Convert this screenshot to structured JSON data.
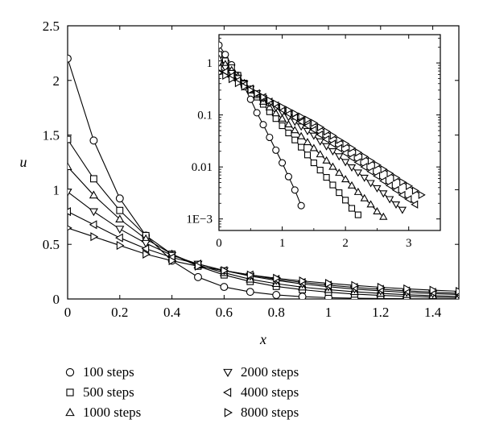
{
  "chart_data": {
    "type": "line",
    "xlabel": "x",
    "ylabel": "u",
    "xlim": [
      0,
      1.5
    ],
    "ylim": [
      0,
      2.5
    ],
    "xticks": [
      "0",
      "0.2",
      "0.4",
      "0.6",
      "0.8",
      "1",
      "1.2",
      "1.4"
    ],
    "yticks": [
      "0",
      "0.5",
      "1",
      "1.5",
      "2",
      "2.5"
    ],
    "grid": false,
    "legend_position": "bottom",
    "series": [
      {
        "name": "100 steps",
        "marker": "circle",
        "x": [
          0,
          0.1,
          0.2,
          0.3,
          0.4,
          0.5,
          0.6,
          0.7,
          0.8,
          0.9,
          1.0,
          1.1,
          1.2,
          1.3,
          1.4,
          1.5
        ],
        "y": [
          2.2,
          1.45,
          0.92,
          0.58,
          0.35,
          0.2,
          0.11,
          0.065,
          0.037,
          0.021,
          0.012,
          0.007,
          0.004,
          0.002,
          0.0012,
          0.0007
        ]
      },
      {
        "name": "500 steps",
        "marker": "square",
        "x": [
          0,
          0.1,
          0.2,
          0.3,
          0.4,
          0.5,
          0.6,
          0.7,
          0.8,
          0.9,
          1.0,
          1.1,
          1.2,
          1.3,
          1.4,
          1.5
        ],
        "y": [
          1.46,
          1.1,
          0.81,
          0.58,
          0.41,
          0.3,
          0.22,
          0.16,
          0.115,
          0.085,
          0.062,
          0.045,
          0.033,
          0.024,
          0.017,
          0.012
        ]
      },
      {
        "name": "1000 steps",
        "marker": "triangle-up",
        "x": [
          0,
          0.1,
          0.2,
          0.3,
          0.4,
          0.5,
          0.6,
          0.7,
          0.8,
          0.9,
          1.0,
          1.1,
          1.2,
          1.3,
          1.4,
          1.5
        ],
        "y": [
          1.21,
          0.95,
          0.73,
          0.55,
          0.41,
          0.31,
          0.24,
          0.18,
          0.14,
          0.108,
          0.085,
          0.066,
          0.051,
          0.039,
          0.03,
          0.023
        ]
      },
      {
        "name": "2000 steps",
        "marker": "triangle-down",
        "x": [
          0,
          0.1,
          0.2,
          0.3,
          0.4,
          0.5,
          0.6,
          0.7,
          0.8,
          0.9,
          1.0,
          1.1,
          1.2,
          1.3,
          1.4,
          1.5
        ],
        "y": [
          0.98,
          0.8,
          0.64,
          0.51,
          0.4,
          0.32,
          0.26,
          0.21,
          0.17,
          0.138,
          0.112,
          0.091,
          0.074,
          0.06,
          0.049,
          0.04
        ]
      },
      {
        "name": "4000 steps",
        "marker": "triangle-left",
        "x": [
          0,
          0.1,
          0.2,
          0.3,
          0.4,
          0.5,
          0.6,
          0.7,
          0.8,
          0.9,
          1.0,
          1.1,
          1.2,
          1.3,
          1.4,
          1.5
        ],
        "y": [
          0.8,
          0.68,
          0.56,
          0.46,
          0.38,
          0.32,
          0.26,
          0.22,
          0.18,
          0.152,
          0.127,
          0.106,
          0.089,
          0.074,
          0.062,
          0.052
        ]
      },
      {
        "name": "8000 steps",
        "marker": "triangle-right",
        "x": [
          0,
          0.1,
          0.2,
          0.3,
          0.4,
          0.5,
          0.6,
          0.7,
          0.8,
          0.9,
          1.0,
          1.1,
          1.2,
          1.3,
          1.4,
          1.5
        ],
        "y": [
          0.65,
          0.57,
          0.49,
          0.41,
          0.35,
          0.3,
          0.26,
          0.22,
          0.19,
          0.165,
          0.143,
          0.124,
          0.107,
          0.093,
          0.081,
          0.07
        ]
      }
    ],
    "inset": {
      "type": "line",
      "yscale": "log",
      "xlim": [
        0,
        3.5
      ],
      "ylim": [
        0.0006,
        3.5
      ],
      "xticks": [
        "0",
        "1",
        "2",
        "3"
      ],
      "yticks": [
        "1E−3",
        "0.01",
        "0.1",
        "1"
      ],
      "series": [
        {
          "name": "100 steps",
          "x": [
            0,
            0.1,
            0.2,
            0.3,
            0.4,
            0.5,
            0.6,
            0.7,
            0.8,
            0.9,
            1.0,
            1.1,
            1.2,
            1.3
          ],
          "y": [
            2.2,
            1.45,
            0.92,
            0.58,
            0.35,
            0.2,
            0.11,
            0.065,
            0.037,
            0.021,
            0.012,
            0.0065,
            0.0036,
            0.0018
          ]
        },
        {
          "name": "500 steps",
          "x": [
            0,
            0.1,
            0.2,
            0.3,
            0.4,
            0.5,
            0.6,
            0.7,
            0.8,
            0.9,
            1.0,
            1.1,
            1.2,
            1.3,
            1.4,
            1.5,
            1.6,
            1.7,
            1.8,
            1.9,
            2.0,
            2.1,
            2.2
          ],
          "y": [
            1.46,
            1.1,
            0.81,
            0.58,
            0.41,
            0.3,
            0.22,
            0.16,
            0.115,
            0.085,
            0.062,
            0.045,
            0.033,
            0.024,
            0.017,
            0.012,
            0.0087,
            0.0063,
            0.0045,
            0.0032,
            0.0023,
            0.0016,
            0.0012
          ]
        },
        {
          "name": "1000 steps",
          "x": [
            0,
            0.1,
            0.2,
            0.3,
            0.4,
            0.5,
            0.6,
            0.7,
            0.8,
            0.9,
            1.0,
            1.1,
            1.2,
            1.3,
            1.4,
            1.5,
            1.6,
            1.7,
            1.8,
            1.9,
            2.0,
            2.1,
            2.2,
            2.3,
            2.4,
            2.5,
            2.6
          ],
          "y": [
            1.21,
            0.95,
            0.73,
            0.55,
            0.41,
            0.31,
            0.24,
            0.18,
            0.14,
            0.108,
            0.085,
            0.066,
            0.051,
            0.039,
            0.03,
            0.023,
            0.0175,
            0.0133,
            0.0101,
            0.0077,
            0.0058,
            0.0044,
            0.0033,
            0.0025,
            0.0019,
            0.0014,
            0.0011
          ]
        },
        {
          "name": "2000 steps",
          "x": [
            0,
            0.1,
            0.2,
            0.3,
            0.4,
            0.5,
            0.6,
            0.7,
            0.8,
            0.9,
            1.0,
            1.1,
            1.2,
            1.3,
            1.4,
            1.5,
            1.6,
            1.7,
            1.8,
            1.9,
            2.0,
            2.1,
            2.2,
            2.3,
            2.4,
            2.5,
            2.6,
            2.7,
            2.8,
            2.9
          ],
          "y": [
            0.98,
            0.8,
            0.64,
            0.51,
            0.4,
            0.32,
            0.26,
            0.21,
            0.17,
            0.138,
            0.112,
            0.091,
            0.074,
            0.06,
            0.049,
            0.04,
            0.031,
            0.025,
            0.02,
            0.016,
            0.0124,
            0.0098,
            0.0078,
            0.0062,
            0.0049,
            0.0039,
            0.0031,
            0.0024,
            0.0019,
            0.0015
          ]
        },
        {
          "name": "4000 steps",
          "x": [
            0,
            0.1,
            0.2,
            0.3,
            0.4,
            0.5,
            0.6,
            0.7,
            0.8,
            0.9,
            1.0,
            1.1,
            1.2,
            1.3,
            1.4,
            1.5,
            1.6,
            1.7,
            1.8,
            1.9,
            2.0,
            2.1,
            2.2,
            2.3,
            2.4,
            2.5,
            2.6,
            2.7,
            2.8,
            2.9,
            3.0,
            3.1
          ],
          "y": [
            0.8,
            0.68,
            0.56,
            0.46,
            0.38,
            0.32,
            0.26,
            0.22,
            0.18,
            0.152,
            0.127,
            0.106,
            0.089,
            0.074,
            0.062,
            0.052,
            0.042,
            0.034,
            0.028,
            0.023,
            0.0185,
            0.0151,
            0.0123,
            0.01,
            0.0082,
            0.0067,
            0.0054,
            0.0044,
            0.0036,
            0.0029,
            0.0024,
            0.0019
          ]
        },
        {
          "name": "8000 steps",
          "x": [
            0,
            0.1,
            0.2,
            0.3,
            0.4,
            0.5,
            0.6,
            0.7,
            0.8,
            0.9,
            1.0,
            1.1,
            1.2,
            1.3,
            1.4,
            1.5,
            1.6,
            1.7,
            1.8,
            1.9,
            2.0,
            2.1,
            2.2,
            2.3,
            2.4,
            2.5,
            2.6,
            2.7,
            2.8,
            2.9,
            3.0,
            3.1,
            3.2
          ],
          "y": [
            0.65,
            0.57,
            0.49,
            0.41,
            0.35,
            0.3,
            0.26,
            0.22,
            0.19,
            0.165,
            0.143,
            0.124,
            0.107,
            0.093,
            0.081,
            0.07,
            0.058,
            0.048,
            0.04,
            0.033,
            0.028,
            0.023,
            0.019,
            0.0158,
            0.0131,
            0.0109,
            0.009,
            0.0075,
            0.0062,
            0.0051,
            0.0043,
            0.0035,
            0.0029
          ]
        }
      ]
    }
  }
}
